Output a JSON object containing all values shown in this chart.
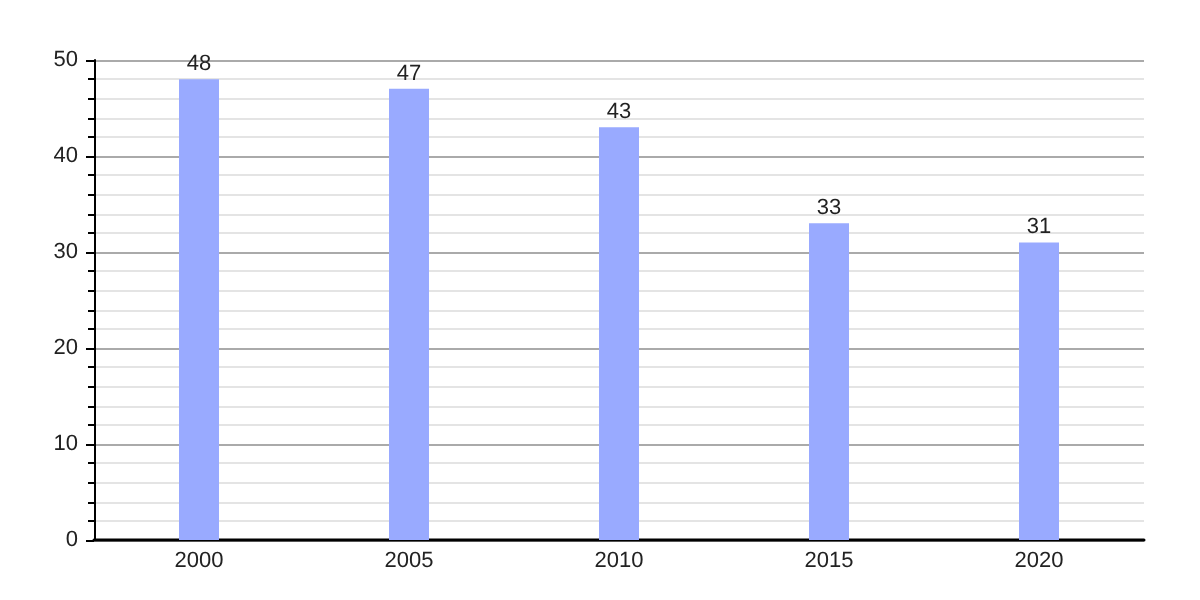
{
  "chart_data": {
    "type": "bar",
    "categories": [
      "2000",
      "2005",
      "2010",
      "2015",
      "2020"
    ],
    "values": [
      48,
      47,
      43,
      33,
      31
    ],
    "color": "#99aaff",
    "ylim": [
      0,
      50
    ],
    "yticks": [
      0,
      10,
      20,
      30,
      40,
      50
    ],
    "grid": "y",
    "data_labels": true
  }
}
